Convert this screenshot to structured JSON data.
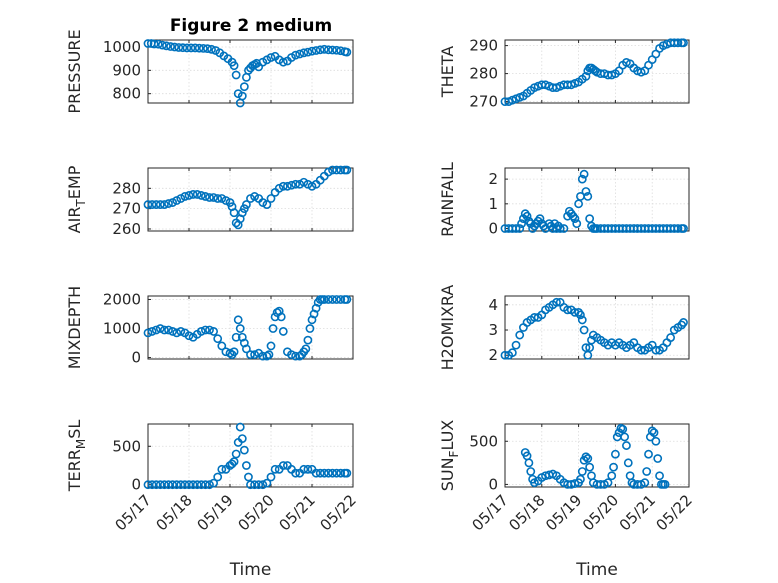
{
  "figure": {
    "title": "Figure 2 medium",
    "marker_color": "#0072BD"
  },
  "chart_data": [
    {
      "type": "scatter",
      "ylabel": "PRESSURE",
      "ylabel_sub": null,
      "ylim": [
        760,
        1030
      ],
      "yticks": [
        800,
        900,
        1000
      ],
      "xlim": [
        0,
        5
      ],
      "xlabel": "",
      "x": [
        0.0,
        0.08,
        0.15,
        0.25,
        0.35,
        0.45,
        0.55,
        0.65,
        0.75,
        0.85,
        0.95,
        1.05,
        1.15,
        1.25,
        1.35,
        1.45,
        1.55,
        1.65,
        1.75,
        1.85,
        1.95,
        2.05,
        2.1,
        2.15,
        2.2,
        2.25,
        2.3,
        2.35,
        2.4,
        2.45,
        2.5,
        2.55,
        2.6,
        2.65,
        2.7,
        2.8,
        2.9,
        3.0,
        3.1,
        3.2,
        3.3,
        3.4,
        3.5,
        3.6,
        3.7,
        3.8,
        3.9,
        4.0,
        4.1,
        4.2,
        4.3,
        4.4,
        4.5,
        4.6,
        4.7,
        4.8,
        4.85
      ],
      "y": [
        1015,
        1015,
        1013,
        1012,
        1008,
        1005,
        1002,
        1000,
        998,
        997,
        996,
        996,
        996,
        995,
        994,
        993,
        990,
        985,
        975,
        962,
        950,
        935,
        920,
        880,
        800,
        760,
        790,
        830,
        870,
        900,
        910,
        920,
        925,
        930,
        915,
        935,
        945,
        955,
        960,
        945,
        935,
        940,
        955,
        965,
        970,
        975,
        978,
        982,
        985,
        988,
        990,
        988,
        987,
        986,
        984,
        980,
        978
      ]
    },
    {
      "type": "scatter",
      "ylabel": "THETA",
      "ylabel_sub": null,
      "ylim": [
        269.5,
        292
      ],
      "yticks": [
        270,
        280,
        290
      ],
      "xlim": [
        0,
        5
      ],
      "xlabel": "",
      "x": [
        0.0,
        0.1,
        0.2,
        0.3,
        0.4,
        0.5,
        0.6,
        0.7,
        0.8,
        0.9,
        1.0,
        1.1,
        1.2,
        1.3,
        1.4,
        1.5,
        1.6,
        1.7,
        1.8,
        1.9,
        2.0,
        2.1,
        2.2,
        2.25,
        2.3,
        2.35,
        2.4,
        2.45,
        2.5,
        2.6,
        2.7,
        2.8,
        2.9,
        3.0,
        3.1,
        3.2,
        3.3,
        3.4,
        3.5,
        3.6,
        3.7,
        3.8,
        3.9,
        4.0,
        4.1,
        4.2,
        4.3,
        4.4,
        4.5,
        4.6,
        4.7,
        4.8,
        4.85
      ],
      "y": [
        270,
        270,
        270.5,
        271,
        271.5,
        272,
        273,
        274,
        275,
        275.5,
        276,
        276,
        275.5,
        275,
        275,
        275.5,
        276,
        276,
        276,
        276.5,
        277,
        278,
        279,
        281,
        282,
        282,
        281.5,
        281,
        280.5,
        280,
        280,
        279.5,
        279.5,
        280,
        281,
        283,
        284,
        283.5,
        282,
        281,
        280.5,
        281,
        283,
        285,
        287,
        289,
        290,
        290.5,
        291,
        291,
        291,
        291,
        291
      ]
    },
    {
      "type": "scatter",
      "ylabel": "AIR",
      "ylabel_sub": "T",
      "ylabel_tail": "EMP",
      "ylim": [
        259,
        290
      ],
      "yticks": [
        260,
        270,
        280
      ],
      "xlim": [
        0,
        5
      ],
      "xlabel": "",
      "x": [
        0.0,
        0.1,
        0.2,
        0.3,
        0.4,
        0.5,
        0.6,
        0.7,
        0.8,
        0.9,
        1.0,
        1.1,
        1.2,
        1.3,
        1.4,
        1.5,
        1.6,
        1.7,
        1.8,
        1.9,
        2.0,
        2.05,
        2.1,
        2.15,
        2.2,
        2.25,
        2.3,
        2.35,
        2.4,
        2.5,
        2.6,
        2.7,
        2.8,
        2.9,
        3.0,
        3.1,
        3.2,
        3.3,
        3.4,
        3.5,
        3.6,
        3.7,
        3.8,
        3.9,
        4.0,
        4.1,
        4.2,
        4.3,
        4.4,
        4.5,
        4.6,
        4.7,
        4.8,
        4.85
      ],
      "y": [
        272,
        272,
        272,
        272,
        272,
        272.5,
        273,
        274,
        275,
        276,
        276.5,
        277,
        277,
        276.5,
        276,
        275.5,
        275.5,
        275,
        275,
        274,
        273,
        271,
        268,
        263,
        262,
        265,
        268,
        270,
        272,
        275,
        276,
        275,
        273,
        272,
        275,
        278,
        280,
        281,
        281,
        281.5,
        282,
        282,
        283,
        282,
        281,
        282,
        284,
        286,
        288,
        289,
        289,
        289,
        289,
        289
      ]
    },
    {
      "type": "scatter",
      "ylabel": "RAINFALL",
      "ylabel_sub": null,
      "ylim": [
        -0.1,
        2.45
      ],
      "yticks": [
        0,
        1,
        2
      ],
      "xlim": [
        0,
        5
      ],
      "xlabel": "",
      "x": [
        0.0,
        0.1,
        0.2,
        0.3,
        0.4,
        0.45,
        0.5,
        0.55,
        0.6,
        0.65,
        0.7,
        0.75,
        0.8,
        0.85,
        0.9,
        0.95,
        1.0,
        1.05,
        1.1,
        1.2,
        1.25,
        1.3,
        1.35,
        1.4,
        1.45,
        1.5,
        1.6,
        1.7,
        1.75,
        1.8,
        1.85,
        1.9,
        1.95,
        2.0,
        2.05,
        2.1,
        2.15,
        2.2,
        2.25,
        2.3,
        2.35,
        2.4,
        2.45,
        2.5,
        2.6,
        2.7,
        2.8,
        2.9,
        3.0,
        3.1,
        3.2,
        3.3,
        3.4,
        3.5,
        3.6,
        3.7,
        3.8,
        3.9,
        4.0,
        4.1,
        4.2,
        4.3,
        4.4,
        4.5,
        4.6,
        4.7,
        4.8,
        4.85
      ],
      "y": [
        0,
        0,
        0,
        0,
        0,
        0.2,
        0.4,
        0.6,
        0.5,
        0.3,
        0.2,
        0,
        0.1,
        0.2,
        0.3,
        0.4,
        0.2,
        0.1,
        0,
        0.2,
        0.1,
        0,
        0.2,
        0,
        0.1,
        0,
        0,
        0.5,
        0.7,
        0.6,
        0.5,
        0.4,
        0.2,
        1.0,
        1.3,
        2.0,
        2.2,
        1.5,
        1.3,
        0.4,
        0.1,
        0,
        0,
        0,
        0,
        0,
        0,
        0,
        0,
        0,
        0,
        0,
        0,
        0,
        0,
        0,
        0,
        0,
        0,
        0,
        0,
        0,
        0,
        0,
        0,
        0,
        0,
        0
      ]
    },
    {
      "type": "scatter",
      "ylabel": "MIXDEPTH",
      "ylabel_sub": null,
      "ylim": [
        -50,
        2120
      ],
      "yticks": [
        0,
        1000,
        2000
      ],
      "xlim": [
        0,
        5
      ],
      "xlabel": "",
      "x": [
        0.0,
        0.1,
        0.2,
        0.3,
        0.4,
        0.5,
        0.6,
        0.7,
        0.8,
        0.9,
        1.0,
        1.1,
        1.2,
        1.3,
        1.4,
        1.5,
        1.6,
        1.7,
        1.8,
        1.9,
        2.0,
        2.05,
        2.1,
        2.15,
        2.2,
        2.25,
        2.3,
        2.35,
        2.4,
        2.5,
        2.6,
        2.7,
        2.8,
        2.9,
        2.95,
        3.0,
        3.05,
        3.1,
        3.15,
        3.2,
        3.25,
        3.3,
        3.4,
        3.5,
        3.6,
        3.7,
        3.75,
        3.8,
        3.85,
        3.9,
        3.95,
        4.0,
        4.05,
        4.1,
        4.15,
        4.2,
        4.25,
        4.3,
        4.4,
        4.5,
        4.6,
        4.7,
        4.8,
        4.85
      ],
      "y": [
        850,
        900,
        950,
        1000,
        950,
        950,
        900,
        850,
        900,
        850,
        750,
        700,
        800,
        900,
        950,
        950,
        900,
        650,
        400,
        200,
        150,
        100,
        200,
        700,
        1300,
        1000,
        700,
        500,
        300,
        100,
        100,
        150,
        50,
        50,
        100,
        400,
        1000,
        1400,
        1550,
        1600,
        1400,
        900,
        200,
        100,
        50,
        50,
        100,
        200,
        300,
        600,
        1000,
        1300,
        1500,
        1700,
        1900,
        2000,
        2000,
        2000,
        2000,
        2000,
        2000,
        2000,
        2000,
        2000
      ]
    },
    {
      "type": "scatter",
      "ylabel": "H2OMIXRA",
      "ylabel_sub": null,
      "ylim": [
        1.85,
        4.35
      ],
      "yticks": [
        2,
        3,
        4
      ],
      "xlim": [
        0,
        5
      ],
      "xlabel": "",
      "x": [
        0.0,
        0.1,
        0.2,
        0.3,
        0.4,
        0.5,
        0.6,
        0.7,
        0.8,
        0.9,
        1.0,
        1.1,
        1.2,
        1.3,
        1.4,
        1.5,
        1.6,
        1.7,
        1.8,
        1.9,
        2.0,
        2.05,
        2.1,
        2.15,
        2.2,
        2.25,
        2.3,
        2.35,
        2.4,
        2.5,
        2.6,
        2.7,
        2.8,
        2.9,
        3.0,
        3.1,
        3.2,
        3.3,
        3.4,
        3.5,
        3.6,
        3.7,
        3.8,
        3.9,
        4.0,
        4.1,
        4.2,
        4.3,
        4.4,
        4.5,
        4.6,
        4.7,
        4.8,
        4.85
      ],
      "y": [
        2.0,
        2.0,
        2.1,
        2.4,
        2.8,
        3.1,
        3.3,
        3.4,
        3.5,
        3.5,
        3.6,
        3.8,
        3.9,
        4.0,
        4.1,
        4.1,
        3.9,
        3.8,
        3.8,
        3.7,
        3.7,
        3.6,
        3.4,
        3.0,
        2.3,
        2.0,
        2.3,
        2.6,
        2.8,
        2.7,
        2.6,
        2.5,
        2.4,
        2.5,
        2.4,
        2.5,
        2.4,
        2.3,
        2.4,
        2.5,
        2.3,
        2.2,
        2.2,
        2.3,
        2.4,
        2.2,
        2.2,
        2.3,
        2.5,
        2.7,
        3.0,
        3.1,
        3.2,
        3.3
      ]
    },
    {
      "type": "scatter",
      "ylabel": "TERR",
      "ylabel_sub": "M",
      "ylabel_tail": "SL",
      "ylim": [
        -30,
        790
      ],
      "yticks": [
        0,
        500
      ],
      "xlim": [
        0,
        5
      ],
      "xlabel": "Time",
      "xtick_labels": [
        "05/17",
        "05/18",
        "05/19",
        "05/20",
        "05/21",
        "05/22"
      ],
      "x": [
        0.0,
        0.1,
        0.2,
        0.3,
        0.4,
        0.5,
        0.6,
        0.7,
        0.8,
        0.9,
        1.0,
        1.1,
        1.2,
        1.3,
        1.4,
        1.5,
        1.6,
        1.7,
        1.8,
        1.9,
        2.0,
        2.05,
        2.1,
        2.15,
        2.2,
        2.25,
        2.3,
        2.35,
        2.4,
        2.45,
        2.5,
        2.6,
        2.7,
        2.8,
        2.9,
        3.0,
        3.1,
        3.2,
        3.3,
        3.4,
        3.5,
        3.6,
        3.7,
        3.8,
        3.9,
        4.0,
        4.1,
        4.2,
        4.3,
        4.4,
        4.5,
        4.6,
        4.7,
        4.8,
        4.85
      ],
      "y": [
        0,
        0,
        0,
        0,
        0,
        0,
        0,
        0,
        0,
        0,
        0,
        0,
        0,
        0,
        0,
        0,
        20,
        100,
        200,
        200,
        250,
        270,
        300,
        400,
        550,
        750,
        600,
        450,
        250,
        100,
        0,
        0,
        0,
        0,
        20,
        100,
        200,
        200,
        250,
        250,
        200,
        150,
        150,
        200,
        200,
        200,
        150,
        150,
        150,
        150,
        150,
        150,
        150,
        150,
        150
      ]
    },
    {
      "type": "scatter",
      "ylabel": "SUN",
      "ylabel_sub": "F",
      "ylabel_tail": "LUX",
      "ylim": [
        -30,
        700
      ],
      "yticks": [
        0,
        500
      ],
      "xlim": [
        0,
        5
      ],
      "xlabel": "Time",
      "xtick_labels": [
        "05/17",
        "05/18",
        "05/19",
        "05/20",
        "05/21",
        "05/22"
      ],
      "x": [
        0.55,
        0.6,
        0.65,
        0.7,
        0.75,
        0.8,
        0.9,
        1.0,
        1.1,
        1.2,
        1.3,
        1.4,
        1.5,
        1.6,
        1.7,
        1.8,
        1.9,
        2.0,
        2.05,
        2.1,
        2.15,
        2.2,
        2.25,
        2.3,
        2.35,
        2.4,
        2.5,
        2.6,
        2.7,
        2.8,
        2.9,
        2.95,
        3.0,
        3.05,
        3.1,
        3.15,
        3.2,
        3.25,
        3.3,
        3.35,
        3.4,
        3.45,
        3.5,
        3.6,
        3.7,
        3.8,
        3.85,
        3.9,
        3.95,
        4.0,
        4.05,
        4.1,
        4.15,
        4.2,
        4.25,
        4.3,
        4.35
      ],
      "y": [
        370,
        330,
        250,
        150,
        60,
        20,
        40,
        80,
        100,
        110,
        120,
        100,
        60,
        20,
        0,
        0,
        10,
        20,
        60,
        150,
        280,
        320,
        300,
        200,
        100,
        20,
        0,
        0,
        0,
        20,
        100,
        200,
        350,
        550,
        600,
        650,
        640,
        550,
        450,
        250,
        100,
        20,
        0,
        0,
        0,
        20,
        150,
        350,
        550,
        620,
        600,
        500,
        300,
        100,
        0,
        0,
        0
      ]
    }
  ]
}
